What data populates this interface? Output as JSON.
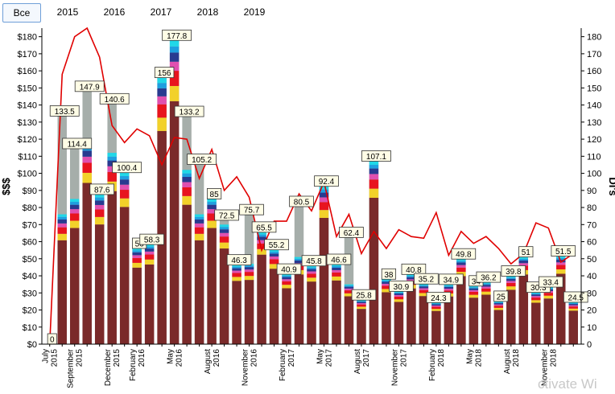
{
  "tabs": [
    {
      "label": "Все",
      "active": true
    },
    {
      "label": "2015",
      "active": false
    },
    {
      "label": "2016",
      "active": false
    },
    {
      "label": "2017",
      "active": false
    },
    {
      "label": "2018",
      "active": false
    },
    {
      "label": "2019",
      "active": false
    }
  ],
  "watermark": "ctivate Wi",
  "colors": {
    "base": "#7a2a2a",
    "gray": "#a6aeaa",
    "line": "#e00000",
    "segments": [
      "#7a2a2a",
      "#f2d12a",
      "#e8141e",
      "#e050b0",
      "#283a90",
      "#1ea0e0",
      "#20d8e8"
    ]
  },
  "chart_data": {
    "type": "bar",
    "title": "",
    "ylabel": "$$$",
    "y2label": "DI's",
    "ylim": [
      0,
      185
    ],
    "y2lim": [
      0,
      185
    ],
    "y_ticks": [
      "$0",
      "$10",
      "$20",
      "$30",
      "$40",
      "$50",
      "$60",
      "$70",
      "$80",
      "$90",
      "$100",
      "$110",
      "$120",
      "$130",
      "$140",
      "$150",
      "$160",
      "$170",
      "$180"
    ],
    "y2_ticks": [
      "0",
      "10",
      "20",
      "30",
      "40",
      "50",
      "60",
      "70",
      "80",
      "90",
      "100",
      "110",
      "120",
      "130",
      "140",
      "150",
      "160",
      "170",
      "180"
    ],
    "x_labels": [
      {
        "text": "July",
        "text2": "2015",
        "at": 0
      },
      {
        "text": "September",
        "text2": "2015",
        "at": 2
      },
      {
        "text": "December",
        "text2": "2015",
        "at": 5
      },
      {
        "text": "February",
        "text2": "2016",
        "at": 7
      },
      {
        "text": "May",
        "text2": "2016",
        "at": 10
      },
      {
        "text": "August",
        "text2": "2016",
        "at": 13
      },
      {
        "text": "November",
        "text2": "2016",
        "at": 16
      },
      {
        "text": "February",
        "text2": "2017",
        "at": 19
      },
      {
        "text": "May",
        "text2": "2017",
        "at": 22
      },
      {
        "text": "August",
        "text2": "2017",
        "at": 25
      },
      {
        "text": "November",
        "text2": "2017",
        "at": 28
      },
      {
        "text": "February",
        "text2": "2018",
        "at": 31
      },
      {
        "text": "May",
        "text2": "2018",
        "at": 34
      },
      {
        "text": "August",
        "text2": "2018",
        "at": 37
      },
      {
        "text": "November",
        "text2": "2018",
        "at": 40
      }
    ],
    "bars": [
      {
        "label": "0",
        "total": 0,
        "colored": 0,
        "label_pos": "top"
      },
      {
        "label": "133.5",
        "total": 133.5,
        "colored": 76,
        "label_pos": "top"
      },
      {
        "label": "114.4",
        "total": 114.4,
        "colored": 85,
        "label_pos": "top"
      },
      {
        "label": "147.9",
        "total": 147.9,
        "colored": 118,
        "label_pos": "top"
      },
      {
        "label": "87.6",
        "total": 87.6,
        "colored": 87.6,
        "label_pos": "top"
      },
      {
        "label": "140.6",
        "total": 140.6,
        "colored": 112,
        "label_pos": "top"
      },
      {
        "label": "100.4",
        "total": 100.4,
        "colored": 100.4,
        "label_pos": "top"
      },
      {
        "label": "56",
        "total": 56,
        "colored": 56,
        "label_pos": "top"
      },
      {
        "label": "58.3",
        "total": 58.3,
        "colored": 58.3,
        "label_pos": "top"
      },
      {
        "label": "156",
        "total": 156,
        "colored": 156,
        "label_pos": "top"
      },
      {
        "label": "177.8",
        "total": 177.8,
        "colored": 177.8,
        "label_pos": "top"
      },
      {
        "label": "133.2",
        "total": 133.2,
        "colored": 102,
        "label_pos": "top"
      },
      {
        "label": "105.2",
        "total": 105.2,
        "colored": 76,
        "label_pos": "top"
      },
      {
        "label": "85",
        "total": 85,
        "colored": 85,
        "label_pos": "top"
      },
      {
        "label": "72.5",
        "total": 72.5,
        "colored": 70,
        "label_pos": "top"
      },
      {
        "label": "46.3",
        "total": 46.3,
        "colored": 46.3,
        "label_pos": "top"
      },
      {
        "label": "75.7",
        "total": 75.7,
        "colored": 47,
        "label_pos": "top"
      },
      {
        "label": "65.5",
        "total": 65.5,
        "colored": 65.5,
        "label_pos": "top"
      },
      {
        "label": "55.2",
        "total": 55.2,
        "colored": 55.2,
        "label_pos": "top"
      },
      {
        "label": "40.9",
        "total": 40.9,
        "colored": 40.9,
        "label_pos": "top"
      },
      {
        "label": "80.5",
        "total": 80.5,
        "colored": 51,
        "label_pos": "top"
      },
      {
        "label": "45.8",
        "total": 45.8,
        "colored": 45.8,
        "label_pos": "top"
      },
      {
        "label": "92.4",
        "total": 92.4,
        "colored": 92.4,
        "label_pos": "top"
      },
      {
        "label": "46.6",
        "total": 46.6,
        "colored": 46.6,
        "label_pos": "top"
      },
      {
        "label": "62.4",
        "total": 62.4,
        "colored": 35,
        "label_pos": "top"
      },
      {
        "label": "25.8",
        "total": 25.8,
        "colored": 25.8,
        "label_pos": "top"
      },
      {
        "label": "107.1",
        "total": 107.1,
        "colored": 107.1,
        "label_pos": "top"
      },
      {
        "label": "38",
        "total": 38,
        "colored": 38,
        "label_pos": "top"
      },
      {
        "label": "30.9",
        "total": 30.9,
        "colored": 30.9,
        "label_pos": "top"
      },
      {
        "label": "40.8",
        "total": 40.8,
        "colored": 40.8,
        "label_pos": "top"
      },
      {
        "label": "35.2",
        "total": 35.2,
        "colored": 35.2,
        "label_pos": "top"
      },
      {
        "label": "24.3",
        "total": 24.3,
        "colored": 24.3,
        "label_pos": "top"
      },
      {
        "label": "34.9",
        "total": 34.9,
        "colored": 34.9,
        "label_pos": "top"
      },
      {
        "label": "49.8",
        "total": 49.8,
        "colored": 49.8,
        "label_pos": "top"
      },
      {
        "label": "34",
        "total": 34,
        "colored": 34,
        "label_pos": "top"
      },
      {
        "label": "36.2",
        "total": 36.2,
        "colored": 36.2,
        "label_pos": "top"
      },
      {
        "label": "25",
        "total": 25,
        "colored": 25,
        "label_pos": "top"
      },
      {
        "label": "39.8",
        "total": 39.8,
        "colored": 39.8,
        "label_pos": "top"
      },
      {
        "label": "51",
        "total": 51,
        "colored": 51,
        "label_pos": "top"
      },
      {
        "label": "30.3",
        "total": 30.3,
        "colored": 30.3,
        "label_pos": "top"
      },
      {
        "label": "33.4",
        "total": 33.4,
        "colored": 33.4,
        "label_pos": "top"
      },
      {
        "label": "51.5",
        "total": 51.5,
        "colored": 51.5,
        "label_pos": "top"
      },
      {
        "label": "24.5",
        "total": 24.5,
        "colored": 24.5,
        "label_pos": "top"
      }
    ],
    "line_series": {
      "name": "",
      "values": [
        0,
        158,
        180,
        185,
        168,
        128,
        118,
        126,
        122,
        105,
        121,
        120,
        97,
        114,
        90,
        98,
        86,
        55,
        72,
        72,
        88,
        78,
        95,
        63,
        76,
        53,
        66,
        56,
        67,
        63,
        62,
        77,
        52,
        66,
        59,
        63,
        56,
        47,
        53,
        71,
        68,
        48,
        53
      ]
    }
  }
}
